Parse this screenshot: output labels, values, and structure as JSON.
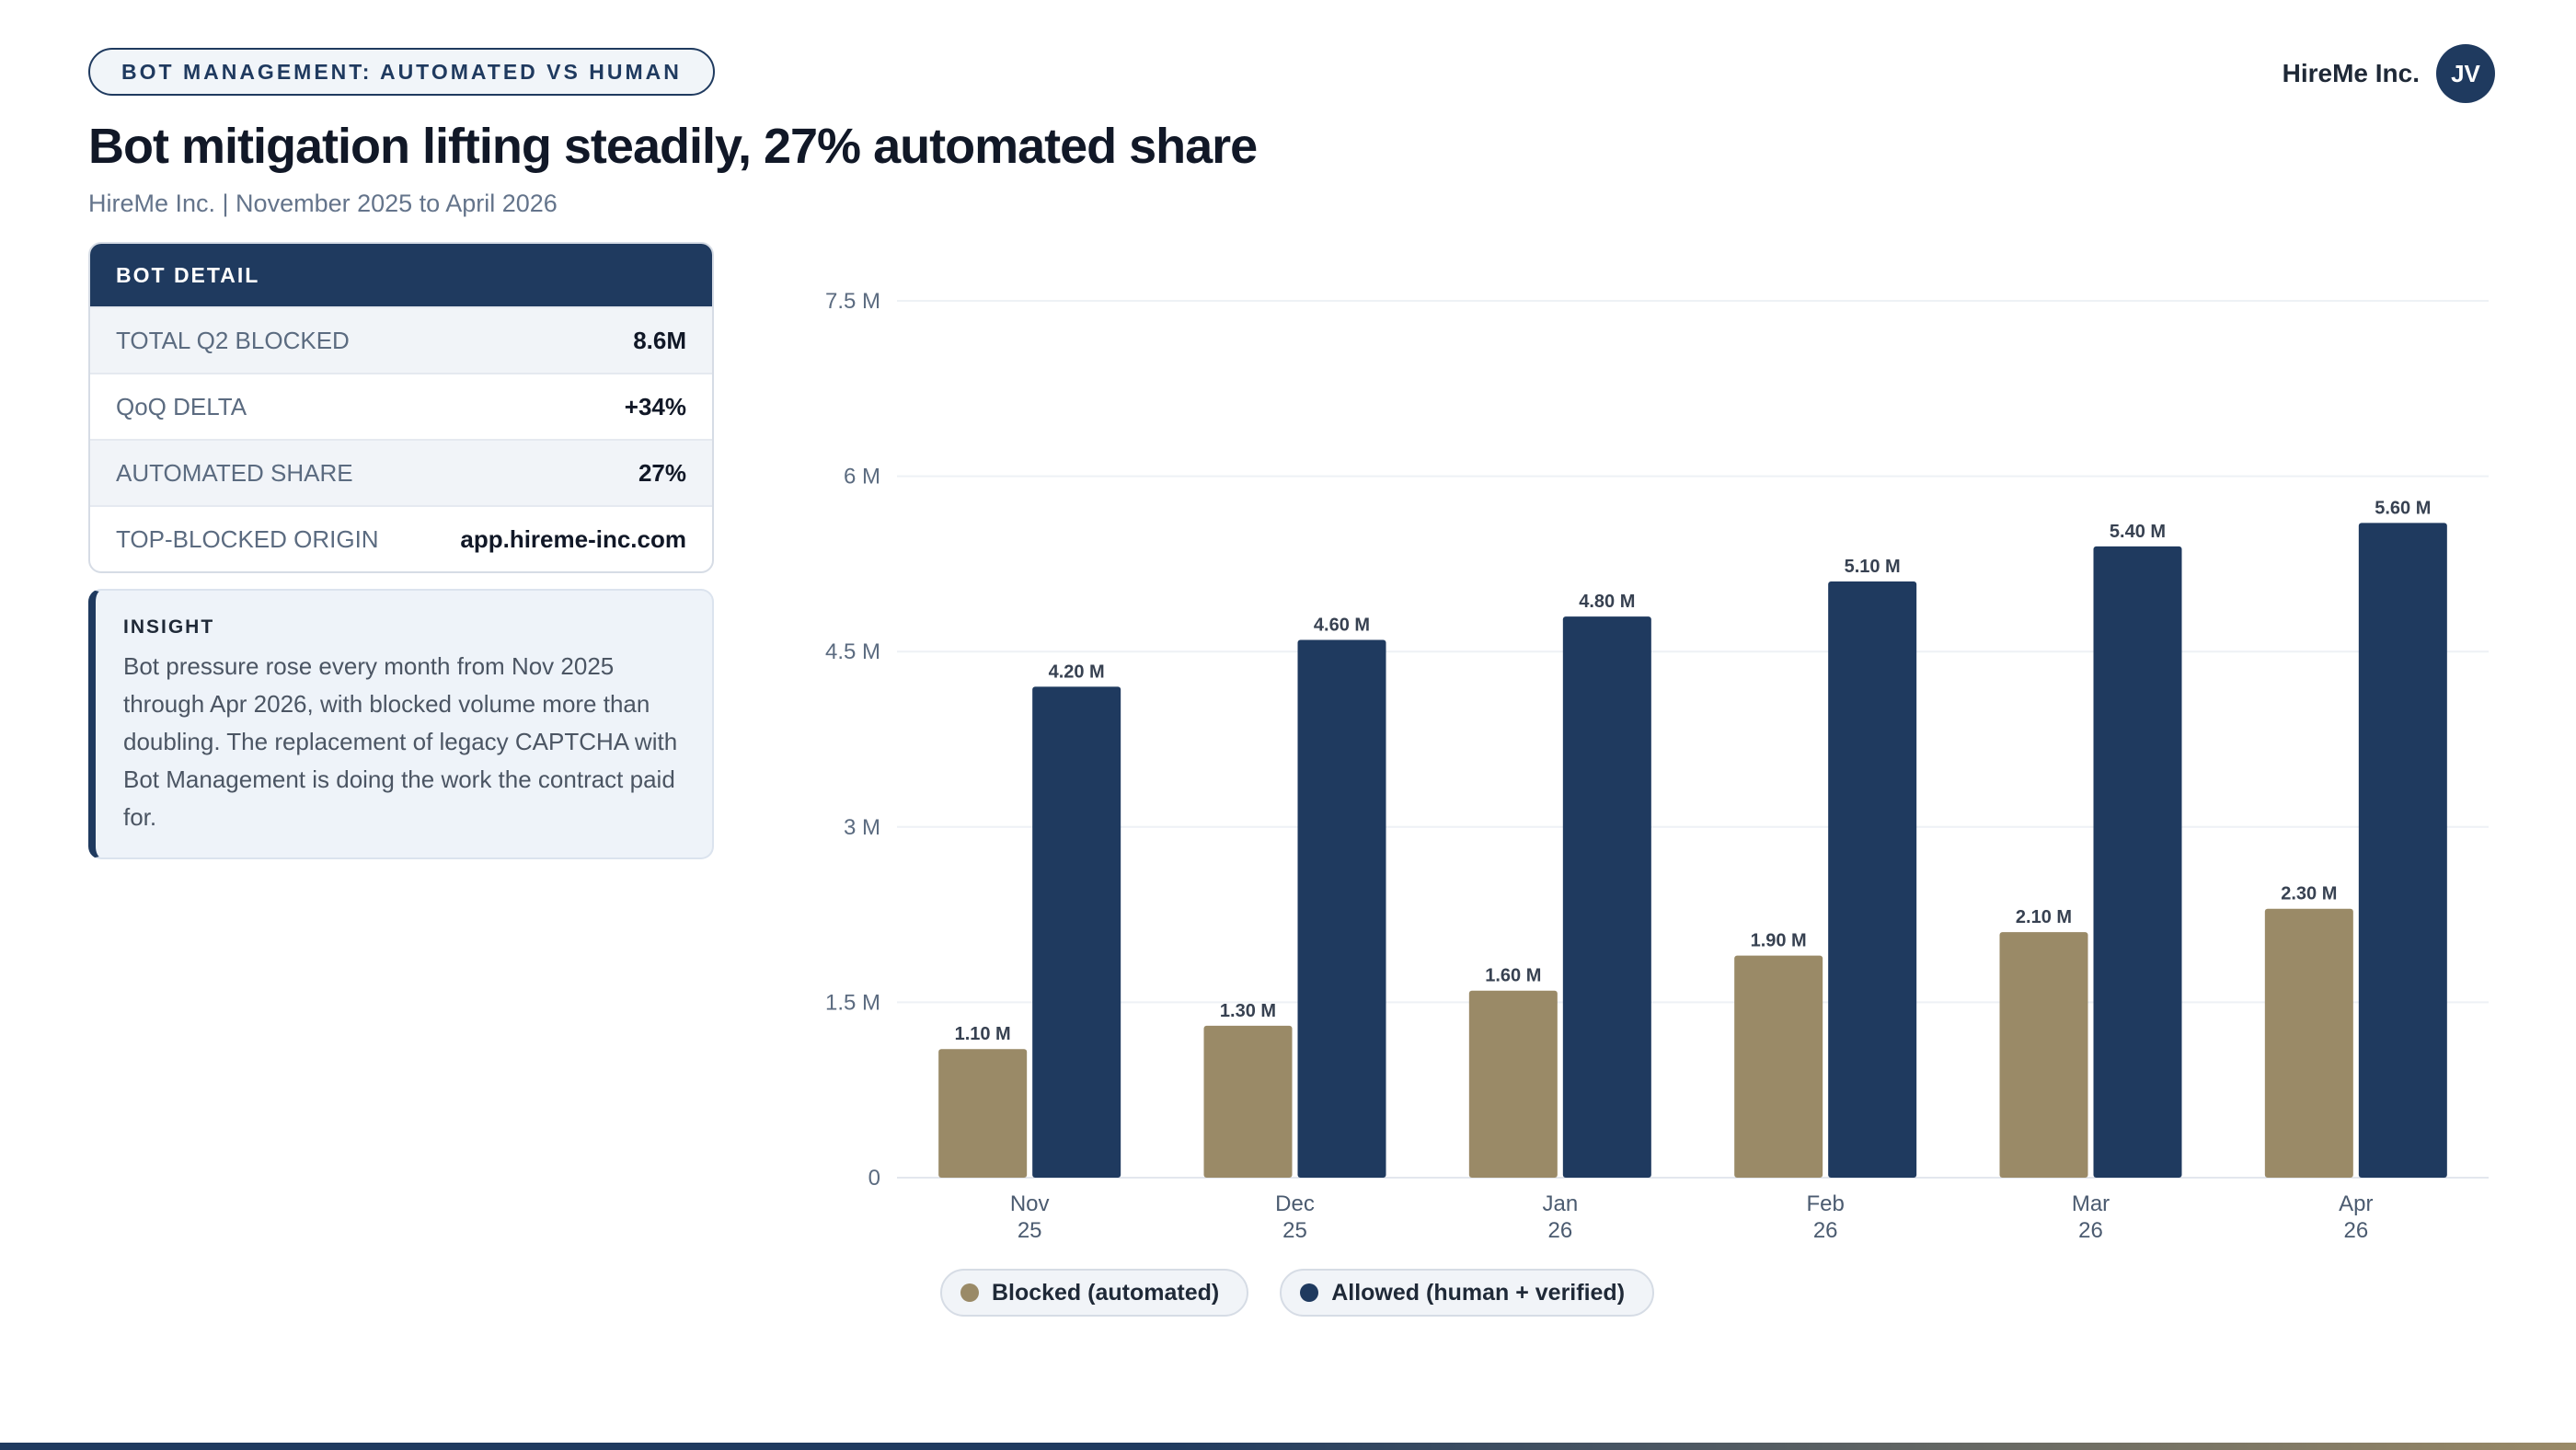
{
  "header": {
    "badge": "BOT MANAGEMENT: AUTOMATED VS HUMAN",
    "company": "HireMe Inc.",
    "avatar_initials": "JV",
    "title": "Bot mitigation lifting steadily, 27% automated share",
    "subtitle": "HireMe Inc. | November 2025 to April 2026"
  },
  "detail": {
    "heading": "BOT DETAIL",
    "rows": [
      {
        "label": "TOTAL Q2 BLOCKED",
        "value": "8.6M"
      },
      {
        "label": "QoQ DELTA",
        "value": "+34%"
      },
      {
        "label": "AUTOMATED SHARE",
        "value": "27%"
      },
      {
        "label": "TOP-BLOCKED ORIGIN",
        "value": "app.hireme-inc.com"
      }
    ]
  },
  "insight": {
    "label": "INSIGHT",
    "text": "Bot pressure rose every month from Nov 2025 through Apr 2026, with blocked volume more than doubling. The replacement of legacy CAPTCHA with Bot Management is doing the work the contract paid for."
  },
  "colors": {
    "blocked": "#9a8a67",
    "allowed": "#1f3a5f",
    "grid": "#eef1f5"
  },
  "chart_data": {
    "type": "bar",
    "categories": [
      [
        "Nov",
        "25"
      ],
      [
        "Dec",
        "25"
      ],
      [
        "Jan",
        "26"
      ],
      [
        "Feb",
        "26"
      ],
      [
        "Mar",
        "26"
      ],
      [
        "Apr",
        "26"
      ]
    ],
    "series": [
      {
        "name": "Blocked (automated)",
        "values": [
          1.1,
          1.3,
          1.6,
          1.9,
          2.1,
          2.3
        ],
        "labels": [
          "1.10 M",
          "1.30 M",
          "1.60 M",
          "1.90 M",
          "2.10 M",
          "2.30 M"
        ]
      },
      {
        "name": "Allowed (human + verified)",
        "values": [
          4.2,
          4.6,
          4.8,
          5.1,
          5.4,
          5.6
        ],
        "labels": [
          "4.20 M",
          "4.60 M",
          "4.80 M",
          "5.10 M",
          "5.40 M",
          "5.60 M"
        ]
      }
    ],
    "y_ticks": [
      0,
      1.5,
      3,
      4.5,
      6,
      7.5
    ],
    "y_tick_labels": [
      "0",
      "1.5 M",
      "3 M",
      "4.5 M",
      "6 M",
      "7.5 M"
    ],
    "ylim": [
      0,
      7.5
    ],
    "grid": true,
    "legend_position": "bottom-center"
  }
}
